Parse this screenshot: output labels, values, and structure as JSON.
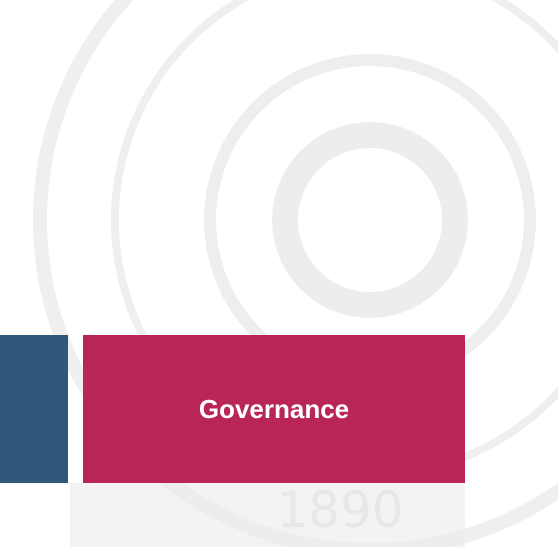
{
  "watermark": {
    "year": "1890"
  },
  "tiles": [
    {
      "label": "Governance"
    }
  ]
}
